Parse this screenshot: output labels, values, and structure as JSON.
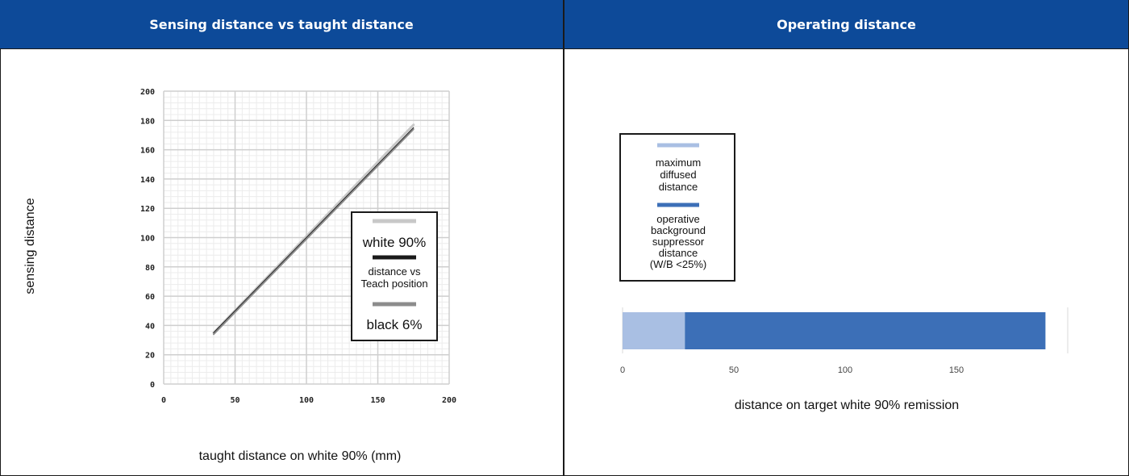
{
  "panels": {
    "left_title": "Sensing distance vs taught distance",
    "right_title": "Operating distance"
  },
  "colors": {
    "header_bg": "#0d4a99",
    "white_series": "#c8c8c8",
    "teach_series": "#1a1a1a",
    "black_series": "#8c8c8c",
    "max_diffused": "#a9bfe3",
    "operative_bg": "#3c6fb7"
  },
  "chart_data": [
    {
      "type": "line",
      "xlabel": "taught distance on white 90% (mm)",
      "ylabel": "sensing distance",
      "xlim": [
        0,
        200
      ],
      "ylim": [
        0,
        200
      ],
      "x_ticks": [
        "0",
        "50",
        "100",
        "150",
        "200"
      ],
      "y_ticks": [
        "0",
        "20",
        "40",
        "60",
        "80",
        "100",
        "120",
        "140",
        "160",
        "180",
        "200"
      ],
      "grid": true,
      "legend_position": "right",
      "series": [
        {
          "name": "white 90%",
          "x": [
            35,
            175
          ],
          "y": [
            35,
            177
          ]
        },
        {
          "name": "distance vs Teach position",
          "x": [
            35,
            175
          ],
          "y": [
            35,
            175
          ]
        },
        {
          "name": "black 6%",
          "x": [
            35,
            175
          ],
          "y": [
            34,
            174
          ]
        }
      ]
    },
    {
      "type": "bar",
      "orientation": "horizontal",
      "stacked": true,
      "xlabel": "distance on target white 90% remission",
      "xlim": [
        0,
        200
      ],
      "x_ticks": [
        "0",
        "50",
        "100",
        "150"
      ],
      "grid": false,
      "legend_position": "top-left",
      "series": [
        {
          "name": "maximum diffused distance",
          "values": [
            28
          ]
        },
        {
          "name": "operative background suppressor distance (W/B <25%)",
          "values": [
            162
          ]
        }
      ]
    }
  ]
}
